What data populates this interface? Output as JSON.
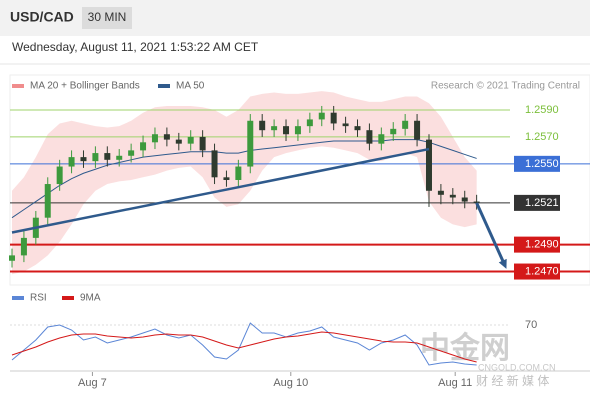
{
  "header": {
    "symbol": "USD/CAD",
    "interval": "30 MIN",
    "timestamp": "Wednesday, August 11, 2021 1:53:22 AM CET",
    "credit": "Research © 2021 Trading Central"
  },
  "watermark": {
    "brand": "中金网",
    "site": "CNGOLD.COM.CN",
    "tagline": "财 经 新 媒 体"
  },
  "chart_data": [
    {
      "type": "candlestick",
      "xlim": [
        -0.5,
        41.8
      ],
      "ylim": [
        1.246,
        1.2616
      ],
      "xticks": [
        {
          "value": 6.75,
          "label": "Aug 7"
        },
        {
          "value": 23.4,
          "label": "Aug 10"
        },
        {
          "value": 37.2,
          "label": "Aug 11"
        }
      ],
      "open": [
        1.2478,
        1.2482,
        1.2495,
        1.251,
        1.2535,
        1.2548,
        1.2555,
        1.2552,
        1.2558,
        1.2553,
        1.2556,
        1.256,
        1.2566,
        1.2572,
        1.2568,
        1.2565,
        1.257,
        1.256,
        1.254,
        1.2538,
        1.2548,
        1.2582,
        1.2575,
        1.2578,
        1.2572,
        1.2578,
        1.2583,
        1.2588,
        1.258,
        1.2578,
        1.2575,
        1.2565,
        1.2572,
        1.2576,
        1.2582,
        1.2568,
        1.253,
        1.2527,
        1.2525,
        1.2522
      ],
      "high": [
        1.2487,
        1.25,
        1.2515,
        1.254,
        1.2553,
        1.256,
        1.256,
        1.2563,
        1.2563,
        1.2561,
        1.2565,
        1.2571,
        1.2577,
        1.2577,
        1.2573,
        1.2575,
        1.2575,
        1.2565,
        1.2545,
        1.2553,
        1.2587,
        1.2587,
        1.2583,
        1.2583,
        1.2583,
        1.2588,
        1.2593,
        1.2593,
        1.2585,
        1.2583,
        1.258,
        1.2577,
        1.2581,
        1.2587,
        1.2587,
        1.2572,
        1.2535,
        1.2532,
        1.253,
        1.2527
      ],
      "low": [
        1.2473,
        1.2477,
        1.249,
        1.2505,
        1.253,
        1.2543,
        1.2547,
        1.2547,
        1.2548,
        1.2548,
        1.2551,
        1.2555,
        1.2561,
        1.2563,
        1.256,
        1.256,
        1.2555,
        1.2535,
        1.2533,
        1.2533,
        1.2543,
        1.257,
        1.257,
        1.2567,
        1.2567,
        1.2573,
        1.2578,
        1.2575,
        1.2573,
        1.257,
        1.256,
        1.256,
        1.2567,
        1.2571,
        1.2563,
        1.2518,
        1.252,
        1.252,
        1.2517,
        1.2516
      ],
      "close": [
        1.2482,
        1.2495,
        1.251,
        1.2535,
        1.2548,
        1.2555,
        1.2552,
        1.2558,
        1.2553,
        1.2556,
        1.256,
        1.2566,
        1.2572,
        1.2568,
        1.2565,
        1.257,
        1.256,
        1.254,
        1.2538,
        1.2548,
        1.2582,
        1.2575,
        1.2578,
        1.2572,
        1.2578,
        1.2583,
        1.2588,
        1.258,
        1.2578,
        1.2575,
        1.2565,
        1.2572,
        1.2576,
        1.2582,
        1.2568,
        1.253,
        1.2527,
        1.2525,
        1.2522,
        1.2521
      ],
      "up_color": "#3d9a3d",
      "down_color": "#2f3b2f",
      "bands": {
        "name": "MA 20 + Bollinger Bands",
        "color": "#f08c8c",
        "upper": [
          1.253,
          1.254,
          1.2555,
          1.2572,
          1.258,
          1.2582,
          1.258,
          1.2578,
          1.2577,
          1.2578,
          1.2582,
          1.2588,
          1.2592,
          1.2593,
          1.2593,
          1.2593,
          1.2592,
          1.259,
          1.2585,
          1.259,
          1.26,
          1.2602,
          1.2603,
          1.2602,
          1.2602,
          1.2603,
          1.2604,
          1.2603,
          1.26,
          1.2598,
          1.2596,
          1.2596,
          1.2598,
          1.26,
          1.26,
          1.2595,
          1.2585,
          1.257,
          1.2555,
          1.2545
        ],
        "lower": [
          1.2468,
          1.247,
          1.2475,
          1.2482,
          1.2492,
          1.2505,
          1.252,
          1.253,
          1.2535,
          1.2537,
          1.2538,
          1.254,
          1.2542,
          1.2545,
          1.2547,
          1.2548,
          1.254,
          1.2525,
          1.2518,
          1.252,
          1.253,
          1.2545,
          1.2555,
          1.2558,
          1.256,
          1.2562,
          1.2563,
          1.2562,
          1.256,
          1.2558,
          1.2553,
          1.2552,
          1.2555,
          1.2558,
          1.2555,
          1.2522,
          1.251,
          1.2505,
          1.2503,
          1.2505
        ]
      },
      "ma": {
        "name": "MA 50",
        "color": "#2f5a8c",
        "values": [
          1.251,
          1.2516,
          1.2522,
          1.2528,
          1.2534,
          1.2539,
          1.2543,
          1.2546,
          1.2549,
          1.2551,
          1.2553,
          1.2555,
          1.2556,
          1.2557,
          1.2558,
          1.2559,
          1.2559,
          1.2559,
          1.2558,
          1.2558,
          1.256,
          1.2561,
          1.2562,
          1.2563,
          1.2564,
          1.2565,
          1.2566,
          1.2567,
          1.2567,
          1.2567,
          1.2567,
          1.2567,
          1.2568,
          1.2568,
          1.2568,
          1.2566,
          1.2563,
          1.256,
          1.2557,
          1.2554
        ]
      },
      "levels": [
        {
          "value": 1.259,
          "label": "1.2590",
          "color": "#9fd36b",
          "style": "text"
        },
        {
          "value": 1.257,
          "label": "1.2570",
          "color": "#9fd36b",
          "style": "text"
        },
        {
          "value": 1.255,
          "label": "1.2550",
          "color": "#3b6fd6",
          "style": "box"
        },
        {
          "value": 1.2521,
          "label": "1.2521",
          "color": "#333333",
          "style": "box"
        },
        {
          "value": 1.249,
          "label": "1.2490",
          "color": "#d41919",
          "style": "box"
        },
        {
          "value": 1.247,
          "label": "1.2470",
          "color": "#d41919",
          "style": "box"
        }
      ],
      "trendline": {
        "x": [
          0,
          35
        ],
        "y": [
          1.2499,
          1.2561
        ],
        "color": "#2f5a8c"
      },
      "arrow": {
        "x": [
          39,
          41.5
        ],
        "y": [
          1.2521,
          1.2472
        ],
        "color": "#2f5a8c"
      }
    },
    {
      "type": "line",
      "xlim": [
        -0.5,
        41.8
      ],
      "ylim": [
        10,
        95
      ],
      "yticks": [
        70
      ],
      "series": [
        {
          "name": "RSI",
          "color": "#5b86d6",
          "values": [
            35,
            45,
            55,
            68,
            70,
            65,
            55,
            58,
            52,
            55,
            58,
            62,
            66,
            60,
            57,
            60,
            50,
            38,
            36,
            45,
            72,
            62,
            62,
            58,
            62,
            64,
            68,
            58,
            55,
            52,
            45,
            52,
            55,
            60,
            50,
            30,
            32,
            33,
            31,
            30
          ]
        },
        {
          "name": "9MA",
          "color": "#d41919",
          "values": [
            40,
            44,
            48,
            53,
            57,
            60,
            61,
            61,
            59,
            58,
            57,
            58,
            60,
            61,
            60,
            60,
            58,
            54,
            50,
            47,
            50,
            53,
            56,
            58,
            59,
            61,
            63,
            62,
            60,
            58,
            56,
            54,
            53,
            53,
            52,
            48,
            44,
            40,
            36,
            33
          ]
        }
      ]
    }
  ]
}
